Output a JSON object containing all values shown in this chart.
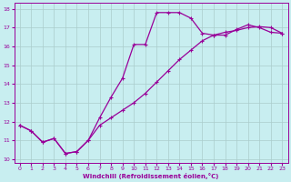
{
  "xlabel": "Windchill (Refroidissement éolien,°C)",
  "bg_color": "#c8eef0",
  "line_color": "#990099",
  "grid_color": "#aacccc",
  "xlim": [
    -0.5,
    23.5
  ],
  "ylim": [
    9.8,
    18.3
  ],
  "xticks": [
    0,
    1,
    2,
    3,
    4,
    5,
    6,
    7,
    8,
    9,
    10,
    11,
    12,
    13,
    14,
    15,
    16,
    17,
    18,
    19,
    20,
    21,
    22,
    23
  ],
  "yticks": [
    10,
    11,
    12,
    13,
    14,
    15,
    16,
    17,
    18
  ],
  "line1_x": [
    0,
    1,
    2,
    3,
    4,
    5,
    6,
    7,
    8,
    9,
    10,
    11,
    12,
    13,
    14,
    15,
    16,
    17,
    18,
    19,
    20,
    21,
    22,
    23
  ],
  "line1_y": [
    11.8,
    11.5,
    10.9,
    11.1,
    10.3,
    10.4,
    11.0,
    12.2,
    13.3,
    14.3,
    16.1,
    16.1,
    17.8,
    17.8,
    17.8,
    17.5,
    16.7,
    16.6,
    16.6,
    16.9,
    17.15,
    17.0,
    16.75,
    16.7
  ],
  "line2_x": [
    0,
    1,
    2,
    3,
    4,
    5,
    6,
    7,
    8,
    9,
    10,
    11,
    12,
    13,
    14,
    15,
    16,
    17,
    18,
    19,
    20,
    21,
    22,
    23
  ],
  "line2_y": [
    11.8,
    11.5,
    10.9,
    11.1,
    10.3,
    10.4,
    11.0,
    11.8,
    12.2,
    12.6,
    13.0,
    13.5,
    14.1,
    14.7,
    15.3,
    15.8,
    16.3,
    16.6,
    16.75,
    16.85,
    17.0,
    17.05,
    17.0,
    16.7
  ]
}
